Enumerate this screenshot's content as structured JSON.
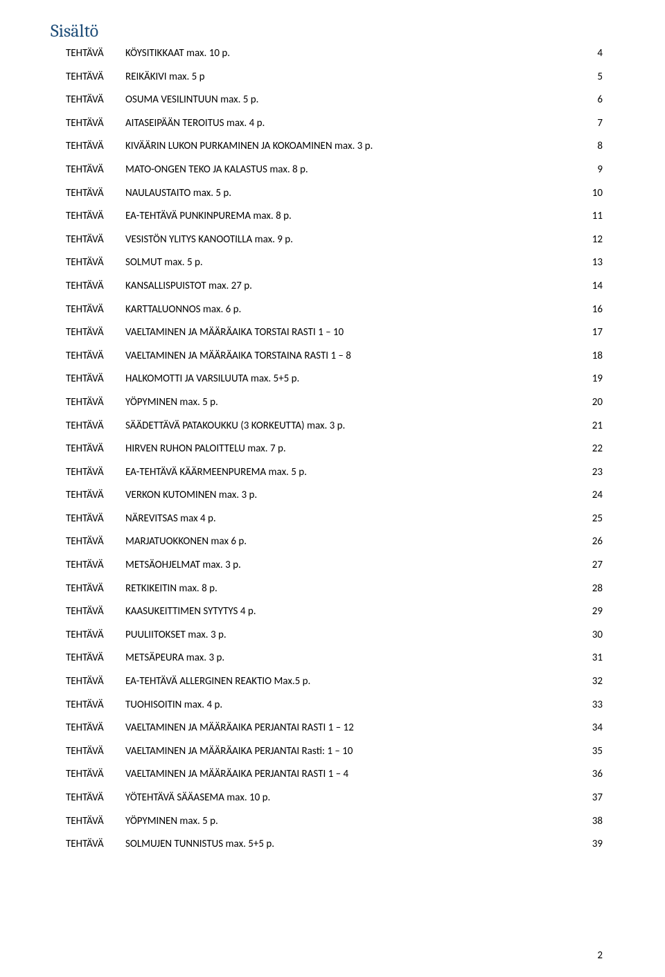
{
  "heading": "Sisältö",
  "label": "TEHTÄVÄ",
  "page_number": "2",
  "entries": [
    {
      "title": "KÖYSITIKKAAT max. 10 p.",
      "page": "4"
    },
    {
      "title": "REIKÄKIVI  max. 5 p",
      "page": "5"
    },
    {
      "title": "OSUMA VESILINTUUN  max. 5 p.",
      "page": "6"
    },
    {
      "title": "AITASEIPÄÄN TEROITUS max. 4 p.",
      "page": "7"
    },
    {
      "title": "KIVÄÄRIN LUKON PURKAMINEN JA KOKOAMINEN max. 3 p.",
      "page": "8"
    },
    {
      "title": "MATO-ONGEN TEKO JA KALASTUS max. 8 p.",
      "page": "9"
    },
    {
      "title": "NAULAUSTAITO max. 5 p.",
      "page": "10"
    },
    {
      "title": "EA-TEHTÄVÄ PUNKINPUREMA max. 8 p.",
      "page": "11"
    },
    {
      "title": "VESISTÖN YLITYS KANOOTILLA max. 9 p.",
      "page": "12"
    },
    {
      "title": "SOLMUT  max. 5 p.",
      "page": "13"
    },
    {
      "title": "KANSALLISPUISTOT  max. 27 p.",
      "page": "14"
    },
    {
      "title": "KARTTALUONNOS max. 6 p.",
      "page": "16"
    },
    {
      "title": "VAELTAMINEN JA MÄÄRÄAIKA TORSTAI RASTI 1 – 10",
      "page": "17"
    },
    {
      "title": "VAELTAMINEN JA MÄÄRÄAIKA TORSTAINA RASTI 1 – 8",
      "page": "18"
    },
    {
      "title": "HALKOMOTTI JA VARSILUUTA max. 5+5 p.",
      "page": "19"
    },
    {
      "title": "YÖPYMINEN max. 5 p.",
      "page": "20"
    },
    {
      "title": "SÄÄDETTÄVÄ PATAKOUKKU (3 KORKEUTTA) max. 3 p.",
      "page": "21"
    },
    {
      "title": "HIRVEN RUHON PALOITTELU max. 7 p.",
      "page": "22"
    },
    {
      "title": "EA-TEHTÄVÄ KÄÄRMEENPUREMA max. 5 p.",
      "page": "23"
    },
    {
      "title": "VERKON KUTOMINEN  max. 3 p.",
      "page": "24"
    },
    {
      "title": "NÄREVITSAS max 4 p.",
      "page": "25"
    },
    {
      "title": "MARJATUOKKONEN max 6 p.",
      "page": "26"
    },
    {
      "title": "METSÄOHJELMAT  max. 3 p.",
      "page": "27"
    },
    {
      "title": "RETKIKEITIN max. 8 p.",
      "page": "28"
    },
    {
      "title": "KAASUKEITTIMEN SYTYTYS 4 p.",
      "page": "29"
    },
    {
      "title": "PUULIITOKSET max. 3 p.",
      "page": "30"
    },
    {
      "title": "METSÄPEURA max. 3 p.",
      "page": "31"
    },
    {
      "title": "EA-TEHTÄVÄ ALLERGINEN REAKTIO Max.5 p.",
      "page": "32"
    },
    {
      "title": "TUOHISOITIN max. 4 p.",
      "page": "33"
    },
    {
      "title": "VAELTAMINEN JA MÄÄRÄAIKA PERJANTAI RASTI 1 – 12",
      "page": "34"
    },
    {
      "title": "VAELTAMINEN JA MÄÄRÄAIKA PERJANTAI Rasti: 1 – 10",
      "page": "35"
    },
    {
      "title": "VAELTAMINEN JA MÄÄRÄAIKA PERJANTAI RASTI 1 – 4",
      "page": "36"
    },
    {
      "title": "YÖTEHTÄVÄ SÄÄASEMA  max. 10 p.",
      "page": "37"
    },
    {
      "title": "YÖPYMINEN max. 5 p.",
      "page": "38"
    },
    {
      "title": "SOLMUJEN TUNNISTUS  max. 5+5 p.",
      "page": "39"
    }
  ]
}
